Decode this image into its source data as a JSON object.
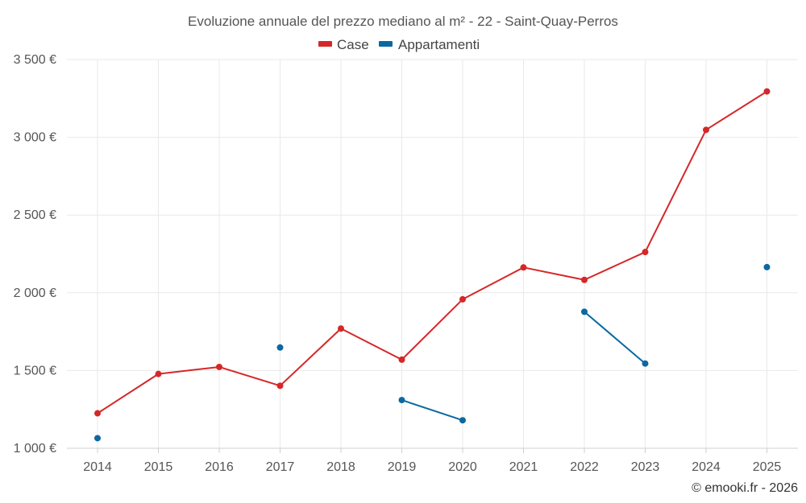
{
  "chart_data": {
    "type": "line",
    "title": "Evoluzione annuale del prezzo mediano al m² - 22 - Saint-Quay-Perros",
    "xlabel": "",
    "ylabel": "",
    "categories": [
      "2014",
      "2015",
      "2016",
      "2017",
      "2018",
      "2019",
      "2020",
      "2021",
      "2022",
      "2023",
      "2024",
      "2025"
    ],
    "ylim": [
      1000,
      3500
    ],
    "yticks": [
      1000,
      1500,
      2000,
      2500,
      3000,
      3500
    ],
    "ytick_labels": [
      "1 000 €",
      "1 500 €",
      "2 000 €",
      "2 500 €",
      "3 000 €",
      "3 500 €"
    ],
    "grid": true,
    "legend_position": "top-center",
    "series": [
      {
        "name": "Case",
        "color": "#d62728",
        "values": [
          1225,
          1478,
          1523,
          1402,
          1770,
          1570,
          1958,
          2163,
          2083,
          2262,
          3048,
          3295
        ]
      },
      {
        "name": "Appartamenti",
        "color": "#0b68a1",
        "values": [
          1065,
          null,
          null,
          1648,
          null,
          1310,
          1180,
          null,
          1878,
          1545,
          null,
          2165
        ]
      }
    ],
    "credit": "© emooki.fr - 2026"
  }
}
